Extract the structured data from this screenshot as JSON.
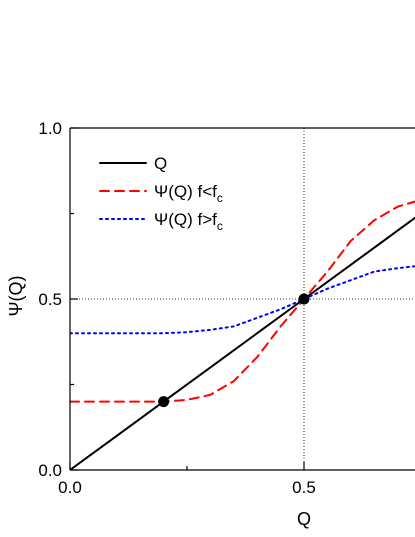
{
  "chart_data": {
    "type": "line",
    "title": "",
    "xlabel": "Q",
    "ylabel": "Ψ(Q)",
    "xlim": [
      0,
      0.75
    ],
    "ylim": [
      0,
      1.0
    ],
    "x_ticks": [
      "0.0",
      "0.5"
    ],
    "y_ticks": [
      "0.0",
      "0.5",
      "1.0"
    ],
    "reference_lines": {
      "x": 0.5,
      "y": 0.5,
      "style": "dotted"
    },
    "legend_position": "top-left",
    "series": [
      {
        "name": "Q",
        "legend_sub": "",
        "color": "#000000",
        "dash": "solid",
        "x": [
          0.0,
          0.1,
          0.2,
          0.3,
          0.4,
          0.5,
          0.6,
          0.7,
          0.75
        ],
        "y": [
          0.0,
          0.1,
          0.2,
          0.3,
          0.4,
          0.5,
          0.6,
          0.7,
          0.75
        ]
      },
      {
        "name": "Ψ(Q)   f<f",
        "legend_sub": "c",
        "color": "#ff0000",
        "dash": "dashed",
        "x": [
          0.0,
          0.1,
          0.2,
          0.25,
          0.3,
          0.35,
          0.4,
          0.45,
          0.5,
          0.55,
          0.6,
          0.65,
          0.7,
          0.75
        ],
        "y": [
          0.2,
          0.2,
          0.2,
          0.205,
          0.22,
          0.26,
          0.33,
          0.42,
          0.5,
          0.58,
          0.67,
          0.73,
          0.77,
          0.79
        ]
      },
      {
        "name": "Ψ(Q)   f>f",
        "legend_sub": "c",
        "color": "#0000ff",
        "dash": "dotted",
        "x": [
          0.0,
          0.1,
          0.2,
          0.25,
          0.3,
          0.35,
          0.4,
          0.45,
          0.5,
          0.55,
          0.6,
          0.65,
          0.7,
          0.75
        ],
        "y": [
          0.4,
          0.4,
          0.4,
          0.403,
          0.41,
          0.42,
          0.445,
          0.47,
          0.5,
          0.53,
          0.555,
          0.58,
          0.59,
          0.598
        ]
      }
    ],
    "markers": [
      {
        "x": 0.2,
        "y": 0.2,
        "color": "#000000"
      },
      {
        "x": 0.5,
        "y": 0.5,
        "color": "#000000"
      }
    ]
  }
}
